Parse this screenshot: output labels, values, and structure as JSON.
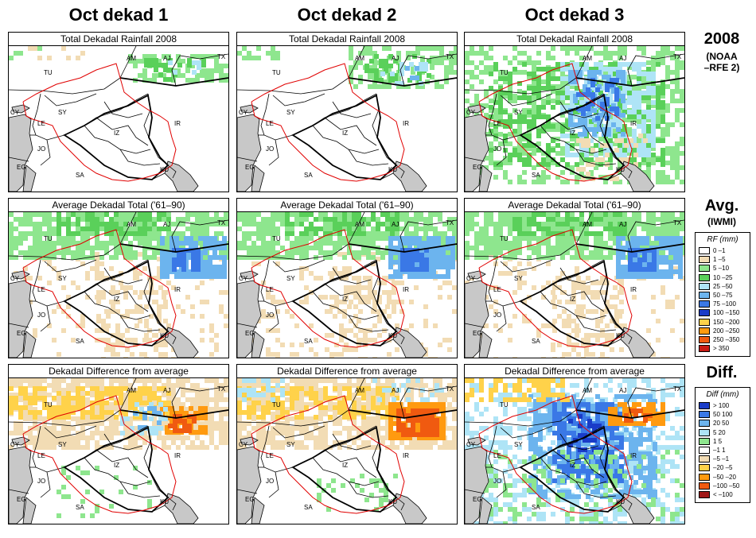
{
  "columns": [
    {
      "title": "Oct dekad 1"
    },
    {
      "title": "Oct dekad 2"
    },
    {
      "title": "Oct dekad 3"
    }
  ],
  "rows": [
    {
      "panel_title": "Total Dekadal Rainfall 2008",
      "side_title": "2008",
      "side_subtitle": [
        "(NOAA",
        "–RFE 2)"
      ]
    },
    {
      "panel_title": "Average Dekadal Total ('61–90)",
      "side_title": "Avg.",
      "side_subtitle": [
        "(IWMI)"
      ]
    },
    {
      "panel_title": "Dekadal Difference from average",
      "side_title": "Diff.",
      "side_subtitle": []
    }
  ],
  "map_labels": [
    "AM",
    "AJ",
    "TX",
    "TU",
    "SY",
    "IR",
    "LE",
    "JO",
    "EG",
    "SA",
    "KU",
    "IZ",
    "CY"
  ],
  "legend_rf": {
    "title": "RF (mm)",
    "items": [
      {
        "label": "0 –1",
        "color": "#ffffff"
      },
      {
        "label": "1 –5",
        "color": "#f2dcb4"
      },
      {
        "label": "5 –10",
        "color": "#8ee68e"
      },
      {
        "label": "10 –25",
        "color": "#5ad05a"
      },
      {
        "label": "25 –50",
        "color": "#aee4f6"
      },
      {
        "label": "50 –75",
        "color": "#6cb4ee"
      },
      {
        "label": "75 –100",
        "color": "#3a78e6"
      },
      {
        "label": "100 –150",
        "color": "#1a3cc8"
      },
      {
        "label": "150 –200",
        "color": "#ffd24a"
      },
      {
        "label": "200 –250",
        "color": "#ff9a10"
      },
      {
        "label": "250 –350",
        "color": "#f05a10"
      },
      {
        "label": "> 350",
        "color": "#c81a14"
      }
    ]
  },
  "legend_diff": {
    "title": "Diff (mm)",
    "items": [
      {
        "label": "> 100",
        "color": "#1a3cc8"
      },
      {
        "label": "50  100",
        "color": "#3a78e6"
      },
      {
        "label": "20  50",
        "color": "#6cb4ee"
      },
      {
        "label": "5  20",
        "color": "#aee4f6"
      },
      {
        "label": "1  5",
        "color": "#8ee68e"
      },
      {
        "label": "–1  1",
        "color": "#ffffff"
      },
      {
        "label": "–5  –1",
        "color": "#f2dcb4"
      },
      {
        "label": "–20  –5",
        "color": "#ffd24a"
      },
      {
        "label": "–50  –20",
        "color": "#ff9a10"
      },
      {
        "label": "–100 –50",
        "color": "#f05a10"
      },
      {
        "label": "< –100",
        "color": "#a01818"
      }
    ]
  },
  "colors": {
    "land": "#ffffff",
    "sea": "#c8c8c8",
    "border": "#000000",
    "basin": "#e00000"
  }
}
